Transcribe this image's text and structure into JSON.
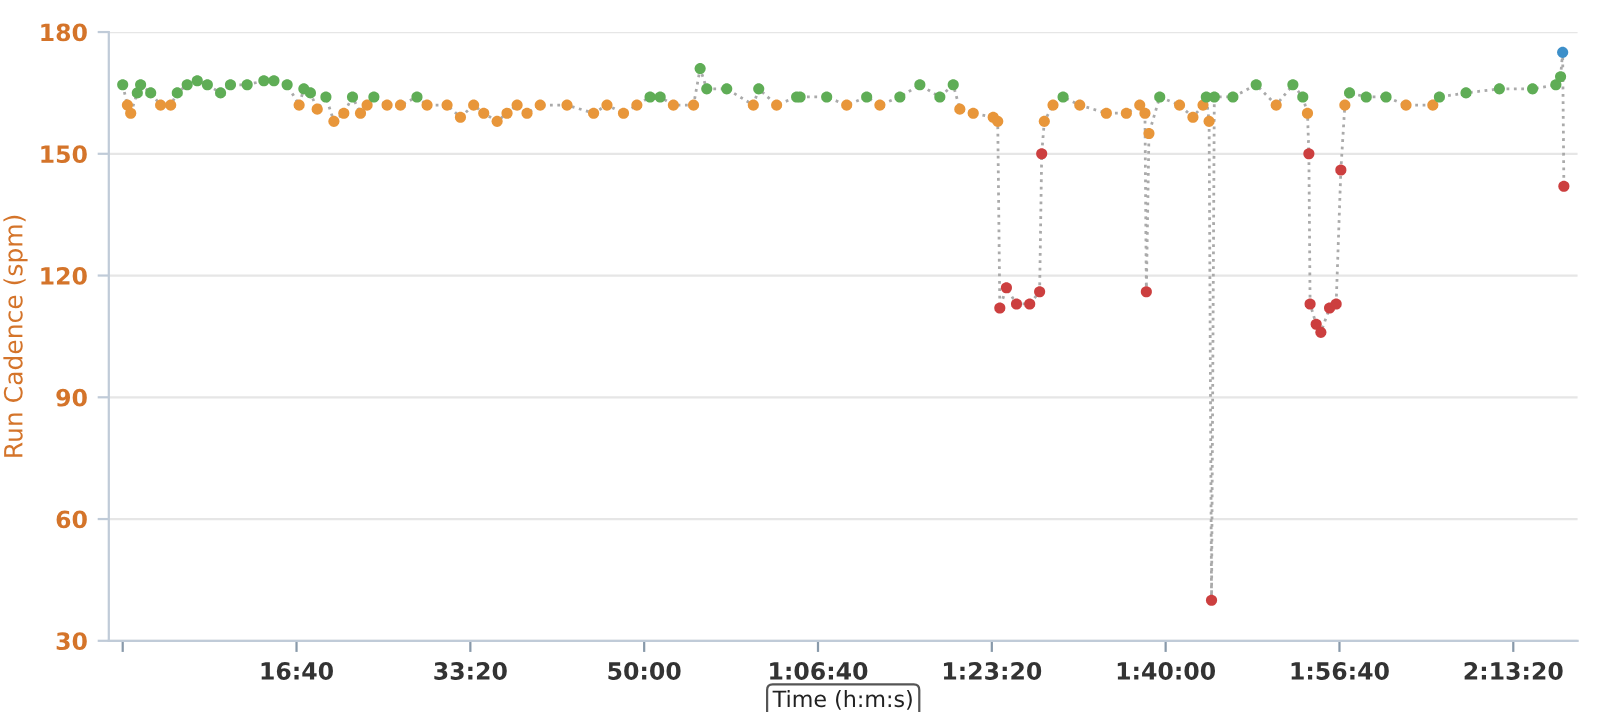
{
  "chart_data": {
    "type": "line",
    "ylabel": "Run Cadence (spm)",
    "xlabel": "Time (h:m:s)",
    "xlim": [
      -80,
      8370
    ],
    "ylim": [
      30,
      180
    ],
    "yticks": [
      30,
      60,
      90,
      120,
      150,
      180
    ],
    "xticks": [
      {
        "value": 0,
        "label": null
      },
      {
        "value": 1000,
        "label": "16:40"
      },
      {
        "value": 2000,
        "label": "33:20"
      },
      {
        "value": 3000,
        "label": "50:00"
      },
      {
        "value": 4000,
        "label": "1:06:40"
      },
      {
        "value": 5000,
        "label": "1:23:20"
      },
      {
        "value": 6000,
        "label": "1:40:00"
      },
      {
        "value": 7000,
        "label": "1:56:40"
      },
      {
        "value": 8000,
        "label": "2:13:20"
      }
    ],
    "grid": "y",
    "marker": "circle",
    "line_style": "dotted",
    "series": [
      {
        "color": "#aaaaaa",
        "x": [
          0,
          27,
          46,
          84,
          103,
          161,
          218,
          276,
          314,
          371,
          429,
          487,
          563,
          620,
          716,
          812,
          870,
          946,
          1015,
          1042,
          1080,
          1119,
          1169,
          1215,
          1272,
          1322,
          1368,
          1406,
          1445,
          1521,
          1598,
          1693,
          1751,
          1866,
          1943,
          2019,
          2077,
          2154,
          2211,
          2269,
          2326,
          2402,
          2556,
          2709,
          2786,
          2881,
          2958,
          3034,
          3092,
          3168,
          3284,
          3322,
          3360,
          3475,
          3628,
          3659,
          3762,
          3877,
          3897,
          4050,
          4165,
          4280,
          4356,
          4471,
          4586,
          4701,
          4778,
          4816,
          4893,
          5008,
          5034,
          5046,
          5084,
          5142,
          5218,
          5275,
          5287,
          5302,
          5352,
          5410,
          5506,
          5659,
          5774,
          5851,
          5881,
          5889,
          5904,
          5966,
          6080,
          6157,
          6215,
          6234,
          6250,
          6264,
          6280,
          6387,
          6521,
          6636,
          6732,
          6789,
          6816,
          6824,
          6831,
          6866,
          6893,
          6943,
          6981,
          7008,
          7031,
          7058,
          7154,
          7268,
          7383,
          7537,
          7575,
          7728,
          7920,
          8111,
          8245,
          8272,
          8284,
          8291
        ],
        "values": [
          167,
          162,
          160,
          165,
          167,
          165,
          162,
          162,
          165,
          167,
          168,
          167,
          165,
          167,
          167,
          168,
          168,
          167,
          162,
          166,
          165,
          161,
          164,
          158,
          160,
          164,
          160,
          162,
          164,
          162,
          162,
          164,
          162,
          162,
          159,
          162,
          160,
          158,
          160,
          162,
          160,
          162,
          162,
          160,
          162,
          160,
          162,
          164,
          164,
          162,
          162,
          171,
          166,
          166,
          162,
          166,
          162,
          164,
          164,
          164,
          162,
          164,
          162,
          164,
          167,
          164,
          167,
          161,
          160,
          159,
          158,
          112,
          117,
          113,
          113,
          116,
          150,
          158,
          162,
          164,
          162,
          160,
          160,
          162,
          160,
          116,
          155,
          164,
          162,
          159,
          162,
          164,
          158,
          40,
          164,
          164,
          167,
          162,
          167,
          164,
          160,
          150,
          113,
          108,
          106,
          112,
          113,
          146,
          162,
          165,
          164,
          164,
          162,
          162,
          164,
          165,
          166,
          166,
          167,
          169,
          175,
          142
        ],
        "colors": [
          "#5fad56",
          "#e8963a",
          "#e8963a",
          "#5fad56",
          "#5fad56",
          "#5fad56",
          "#e8963a",
          "#e8963a",
          "#5fad56",
          "#5fad56",
          "#5fad56",
          "#5fad56",
          "#5fad56",
          "#5fad56",
          "#5fad56",
          "#5fad56",
          "#5fad56",
          "#5fad56",
          "#e8963a",
          "#5fad56",
          "#5fad56",
          "#e8963a",
          "#5fad56",
          "#e8963a",
          "#e8963a",
          "#5fad56",
          "#e8963a",
          "#e8963a",
          "#5fad56",
          "#e8963a",
          "#e8963a",
          "#5fad56",
          "#e8963a",
          "#e8963a",
          "#e8963a",
          "#e8963a",
          "#e8963a",
          "#e8963a",
          "#e8963a",
          "#e8963a",
          "#e8963a",
          "#e8963a",
          "#e8963a",
          "#e8963a",
          "#e8963a",
          "#e8963a",
          "#e8963a",
          "#5fad56",
          "#5fad56",
          "#e8963a",
          "#e8963a",
          "#5fad56",
          "#5fad56",
          "#5fad56",
          "#e8963a",
          "#5fad56",
          "#e8963a",
          "#5fad56",
          "#5fad56",
          "#5fad56",
          "#e8963a",
          "#5fad56",
          "#e8963a",
          "#5fad56",
          "#5fad56",
          "#5fad56",
          "#5fad56",
          "#e8963a",
          "#e8963a",
          "#e8963a",
          "#e8963a",
          "#cc3f3f",
          "#cc3f3f",
          "#cc3f3f",
          "#cc3f3f",
          "#cc3f3f",
          "#cc3f3f",
          "#e8963a",
          "#e8963a",
          "#5fad56",
          "#e8963a",
          "#e8963a",
          "#e8963a",
          "#e8963a",
          "#e8963a",
          "#cc3f3f",
          "#e8963a",
          "#5fad56",
          "#e8963a",
          "#e8963a",
          "#e8963a",
          "#5fad56",
          "#e8963a",
          "#cc3f3f",
          "#5fad56",
          "#5fad56",
          "#5fad56",
          "#e8963a",
          "#5fad56",
          "#5fad56",
          "#e8963a",
          "#cc3f3f",
          "#cc3f3f",
          "#cc3f3f",
          "#cc3f3f",
          "#cc3f3f",
          "#cc3f3f",
          "#cc3f3f",
          "#e8963a",
          "#5fad56",
          "#5fad56",
          "#5fad56",
          "#e8963a",
          "#e8963a",
          "#5fad56",
          "#5fad56",
          "#5fad56",
          "#5fad56",
          "#5fad56",
          "#5fad56",
          "#3d8fc9",
          "#cc3f3f"
        ]
      }
    ]
  }
}
